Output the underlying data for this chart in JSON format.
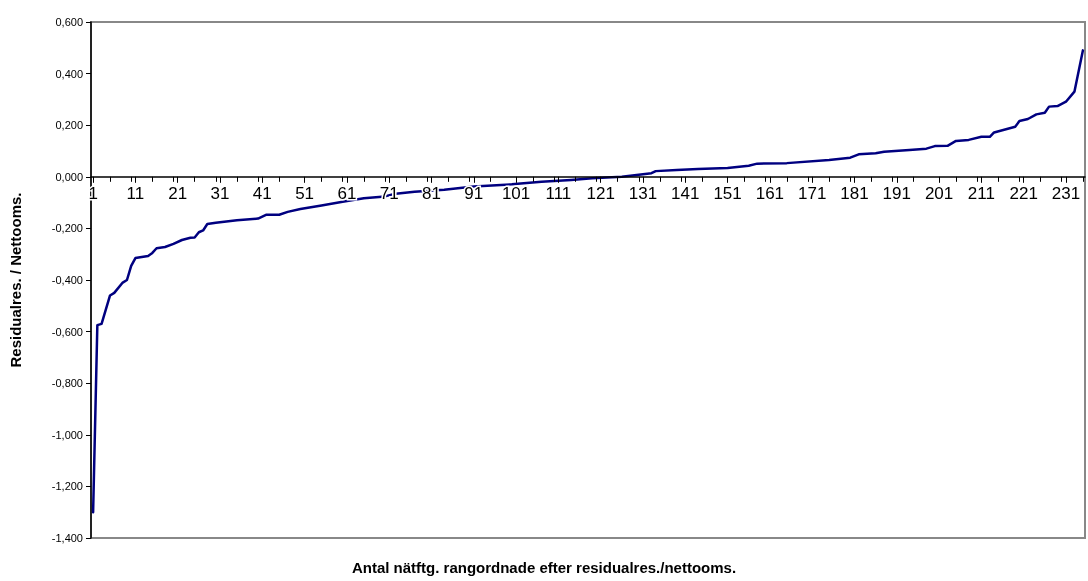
{
  "chart_data": {
    "type": "line",
    "xlabel": "Antal nätftg. rangordnade efter residualres./nettooms.",
    "ylabel": "Residualres. / Nettooms.",
    "xlim": [
      0.5,
      235.5
    ],
    "xticks": [
      1,
      11,
      21,
      31,
      41,
      51,
      61,
      71,
      81,
      91,
      101,
      111,
      121,
      131,
      141,
      151,
      161,
      171,
      181,
      191,
      201,
      211,
      221,
      231
    ],
    "ylim": [
      -1.4,
      0.6
    ],
    "yticks": [
      {
        "value": -1.4,
        "label": "-1,400"
      },
      {
        "value": -1.2,
        "label": "-1,200"
      },
      {
        "value": -1.0,
        "label": "-1,000"
      },
      {
        "value": -0.8,
        "label": "-0,800"
      },
      {
        "value": -0.6,
        "label": "-0,600"
      },
      {
        "value": -0.4,
        "label": "-0,400"
      },
      {
        "value": -0.2,
        "label": "-0,200"
      },
      {
        "value": 0,
        "label": "0,000"
      },
      {
        "value": 0.2,
        "label": "0,200"
      },
      {
        "value": 0.4,
        "label": "0,400"
      },
      {
        "value": 0.6,
        "label": "0,600"
      }
    ],
    "grid": false,
    "marker": "none",
    "line_style": "solid",
    "series": [
      {
        "color": "#000080",
        "x": [
          1,
          2,
          3,
          5,
          6,
          8,
          9,
          10,
          11,
          14,
          15,
          16,
          18,
          20,
          22,
          24,
          25,
          26,
          27,
          28,
          30,
          35,
          40,
          42,
          45,
          47,
          50,
          55,
          60,
          65,
          70,
          72,
          77,
          84,
          91,
          100,
          107,
          114,
          119,
          126,
          131,
          133,
          134,
          139,
          144,
          151,
          156,
          158,
          165,
          175,
          180,
          182,
          186,
          188,
          194,
          198,
          200,
          203,
          205,
          208,
          211,
          213,
          214,
          219,
          220,
          222,
          224,
          226,
          227,
          229,
          231,
          233,
          235
        ],
        "values": [
          -1.3,
          -0.575,
          -0.57,
          -0.46,
          -0.45,
          -0.41,
          -0.4,
          -0.345,
          -0.315,
          -0.307,
          -0.295,
          -0.277,
          -0.272,
          -0.26,
          -0.245,
          -0.236,
          -0.235,
          -0.215,
          -0.208,
          -0.183,
          -0.178,
          -0.168,
          -0.162,
          -0.147,
          -0.147,
          -0.136,
          -0.125,
          -0.111,
          -0.097,
          -0.083,
          -0.076,
          -0.067,
          -0.058,
          -0.05,
          -0.038,
          -0.029,
          -0.019,
          -0.012,
          -0.006,
          0.0,
          0.01,
          0.014,
          0.022,
          0.026,
          0.03,
          0.034,
          0.043,
          0.051,
          0.053,
          0.065,
          0.074,
          0.087,
          0.091,
          0.097,
          0.104,
          0.109,
          0.119,
          0.12,
          0.139,
          0.143,
          0.155,
          0.155,
          0.172,
          0.194,
          0.216,
          0.224,
          0.242,
          0.248,
          0.272,
          0.274,
          0.291,
          0.33,
          0.49
        ]
      }
    ]
  }
}
